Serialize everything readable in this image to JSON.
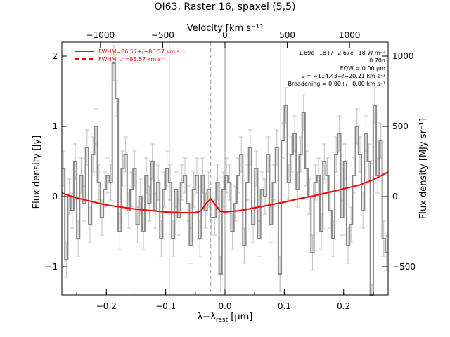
{
  "chart_data": {
    "type": "line",
    "title": "OI63, Raster 16, spaxel (5,5)",
    "xlabel": "λ−λ",
    "xlabel_sub": "rest",
    "xlabel_unit": "[μm]",
    "ylabel": "Flux density [Jy]",
    "top_axis_label": "Velocity [km s⁻¹]",
    "right_axis_label": "Flux density [MJy sr⁻¹]",
    "xlim": [
      -0.275,
      0.275
    ],
    "ylim": [
      -1.4,
      2.2
    ],
    "x_ticks": [
      -0.2,
      -0.1,
      0.0,
      0.1,
      0.2
    ],
    "x_tick_labels": [
      "−0.2",
      "−0.1",
      "0.0",
      "0.1",
      "0.2"
    ],
    "y_ticks": [
      -1,
      0,
      1,
      2
    ],
    "y_tick_labels": [
      "−1",
      "0",
      "1",
      "2"
    ],
    "top_ticks": [
      -1000,
      -500,
      0,
      500,
      1000
    ],
    "top_tick_labels": [
      "−1000",
      "−500",
      "0",
      "500",
      "1000"
    ],
    "top_tick_x": [
      -0.21,
      -0.105,
      0.0,
      0.105,
      0.21
    ],
    "right_ticks": [
      -500,
      0,
      500,
      1000
    ],
    "right_tick_labels": [
      "−500",
      "0",
      "500",
      "1000"
    ],
    "right_tick_y": [
      -1.0,
      0.0,
      1.0,
      2.0
    ],
    "vlines_solid": [
      -0.094,
      0.0,
      0.094
    ],
    "vline_dashed": -0.024,
    "legend": {
      "position": "top-left",
      "entries": [
        {
          "label": "FWHM=86.57+/−86.57 km s⁻¹",
          "style": "solid",
          "color": "#ff0000"
        },
        {
          "label": "FWHM_th=86.57 km s⁻¹",
          "style": "dashed",
          "color": "#ff0000"
        }
      ]
    },
    "annotations": [
      "1.89e−18+/−2.67e−18 W m⁻²",
      "0.70σ",
      "EQW = 0.00 μm",
      "v = −114.43+/−20.21 km s⁻¹",
      "Broadening = 0.00+/−0.00 km s⁻¹"
    ],
    "series": [
      {
        "name": "FWHM=86.57+/−86.57 km s⁻¹",
        "color": "#ff0000",
        "x": [
          -0.275,
          -0.25,
          -0.225,
          -0.2,
          -0.175,
          -0.15,
          -0.125,
          -0.1,
          -0.075,
          -0.05,
          -0.04,
          -0.032,
          -0.024,
          -0.016,
          -0.008,
          0.0,
          0.025,
          0.05,
          0.075,
          0.1,
          0.125,
          0.15,
          0.175,
          0.2,
          0.225,
          0.25,
          0.275
        ],
        "values": [
          0.05,
          -0.02,
          -0.07,
          -0.12,
          -0.15,
          -0.18,
          -0.2,
          -0.22,
          -0.23,
          -0.23,
          -0.2,
          -0.1,
          -0.03,
          -0.12,
          -0.21,
          -0.22,
          -0.2,
          -0.16,
          -0.12,
          -0.08,
          -0.03,
          0.01,
          0.06,
          0.11,
          0.16,
          0.24,
          0.35
        ]
      },
      {
        "name": "spectrum",
        "color": "#888888",
        "x": [
          -0.275,
          -0.27,
          -0.265,
          -0.26,
          -0.255,
          -0.25,
          -0.245,
          -0.24,
          -0.235,
          -0.23,
          -0.225,
          -0.22,
          -0.215,
          -0.21,
          -0.205,
          -0.2,
          -0.195,
          -0.19,
          -0.185,
          -0.18,
          -0.175,
          -0.17,
          -0.165,
          -0.16,
          -0.155,
          -0.15,
          -0.145,
          -0.14,
          -0.135,
          -0.13,
          -0.125,
          -0.12,
          -0.115,
          -0.11,
          -0.105,
          -0.1,
          -0.095,
          -0.09,
          -0.085,
          -0.08,
          -0.075,
          -0.07,
          -0.065,
          -0.06,
          -0.055,
          -0.05,
          -0.045,
          -0.04,
          -0.035,
          -0.03,
          -0.025,
          -0.02,
          -0.015,
          -0.01,
          -0.005,
          0.0,
          0.005,
          0.01,
          0.015,
          0.02,
          0.025,
          0.03,
          0.035,
          0.04,
          0.045,
          0.05,
          0.055,
          0.06,
          0.065,
          0.07,
          0.075,
          0.08,
          0.085,
          0.09,
          0.095,
          0.1,
          0.105,
          0.11,
          0.115,
          0.12,
          0.125,
          0.13,
          0.135,
          0.14,
          0.145,
          0.15,
          0.155,
          0.16,
          0.165,
          0.17,
          0.175,
          0.18,
          0.185,
          0.19,
          0.195,
          0.2,
          0.205,
          0.21,
          0.215,
          0.22,
          0.225,
          0.23,
          0.235,
          0.24,
          0.245,
          0.25,
          0.255,
          0.26,
          0.265,
          0.27
        ],
        "values": [
          0.4,
          -0.9,
          0.0,
          -0.2,
          0.5,
          -0.6,
          0.3,
          -0.1,
          0.7,
          -0.4,
          0.6,
          1.0,
          0.2,
          -0.3,
          0.1,
          0.3,
          0.2,
          1.9,
          1.4,
          -0.5,
          0.4,
          0.6,
          -0.2,
          0.1,
          0.4,
          -0.4,
          0.0,
          -0.5,
          0.3,
          -0.1,
          0.5,
          -0.2,
          0.2,
          -0.6,
          0.1,
          0.4,
          0.2,
          -0.6,
          0.1,
          -0.3,
          0.2,
          0.3,
          -0.1,
          -0.7,
          0.1,
          0.3,
          -0.6,
          0.3,
          -0.2,
          0.1,
          -0.3,
          -0.3,
          0.2,
          -1.1,
          0.1,
          0.3,
          0.2,
          -0.5,
          -0.1,
          0.3,
          0.6,
          -0.7,
          0.2,
          0.7,
          -0.4,
          0.4,
          -0.6,
          0.1,
          0.0,
          0.6,
          -0.4,
          0.2,
          0.7,
          -1.1,
          0.8,
          1.3,
          0.2,
          0.6,
          0.9,
          0.1,
          0.6,
          1.2,
          0.4,
          0.0,
          -0.8,
          0.2,
          0.3,
          -0.5,
          0.5,
          0.3,
          -0.2,
          -0.6,
          0.6,
          0.9,
          -0.3,
          0.5,
          -0.7,
          -0.4,
          0.3,
          1.0,
          0.6,
          -0.2,
          0.9,
          0.5,
          -1.5,
          1.3,
          0.3,
          0.8,
          -0.6,
          -0.8
        ],
        "errors": [
          0.25,
          0.25,
          0.25,
          0.25,
          0.25,
          0.25,
          0.25,
          0.25,
          0.25,
          0.25,
          0.25,
          0.25,
          0.25,
          0.25,
          0.25,
          0.25,
          0.25,
          0.25,
          0.25,
          0.25,
          0.25,
          0.25,
          0.25,
          0.25,
          0.25,
          0.25,
          0.25,
          0.25,
          0.25,
          0.25,
          0.25,
          0.25,
          0.25,
          0.25,
          0.25,
          0.25,
          0.25,
          0.25,
          0.25,
          0.25,
          0.25,
          0.25,
          0.25,
          0.25,
          0.25,
          0.25,
          0.25,
          0.25,
          0.25,
          0.25,
          0.25,
          0.25,
          0.25,
          0.25,
          0.25,
          0.25,
          0.25,
          0.25,
          0.25,
          0.25,
          0.25,
          0.25,
          0.25,
          0.25,
          0.25,
          0.25,
          0.25,
          0.25,
          0.25,
          0.25,
          0.25,
          0.25,
          0.25,
          0.25,
          0.25,
          0.25,
          0.25,
          0.25,
          0.25,
          0.25,
          0.25,
          0.25,
          0.25,
          0.25,
          0.25,
          0.25,
          0.25,
          0.25,
          0.25,
          0.25,
          0.25,
          0.25,
          0.25,
          0.25,
          0.25,
          0.25,
          0.25,
          0.25,
          0.25,
          0.25,
          0.25,
          0.25,
          0.25,
          0.25,
          0.25,
          0.25,
          0.25,
          0.25,
          0.25,
          0.25
        ]
      }
    ],
    "grid": false
  }
}
